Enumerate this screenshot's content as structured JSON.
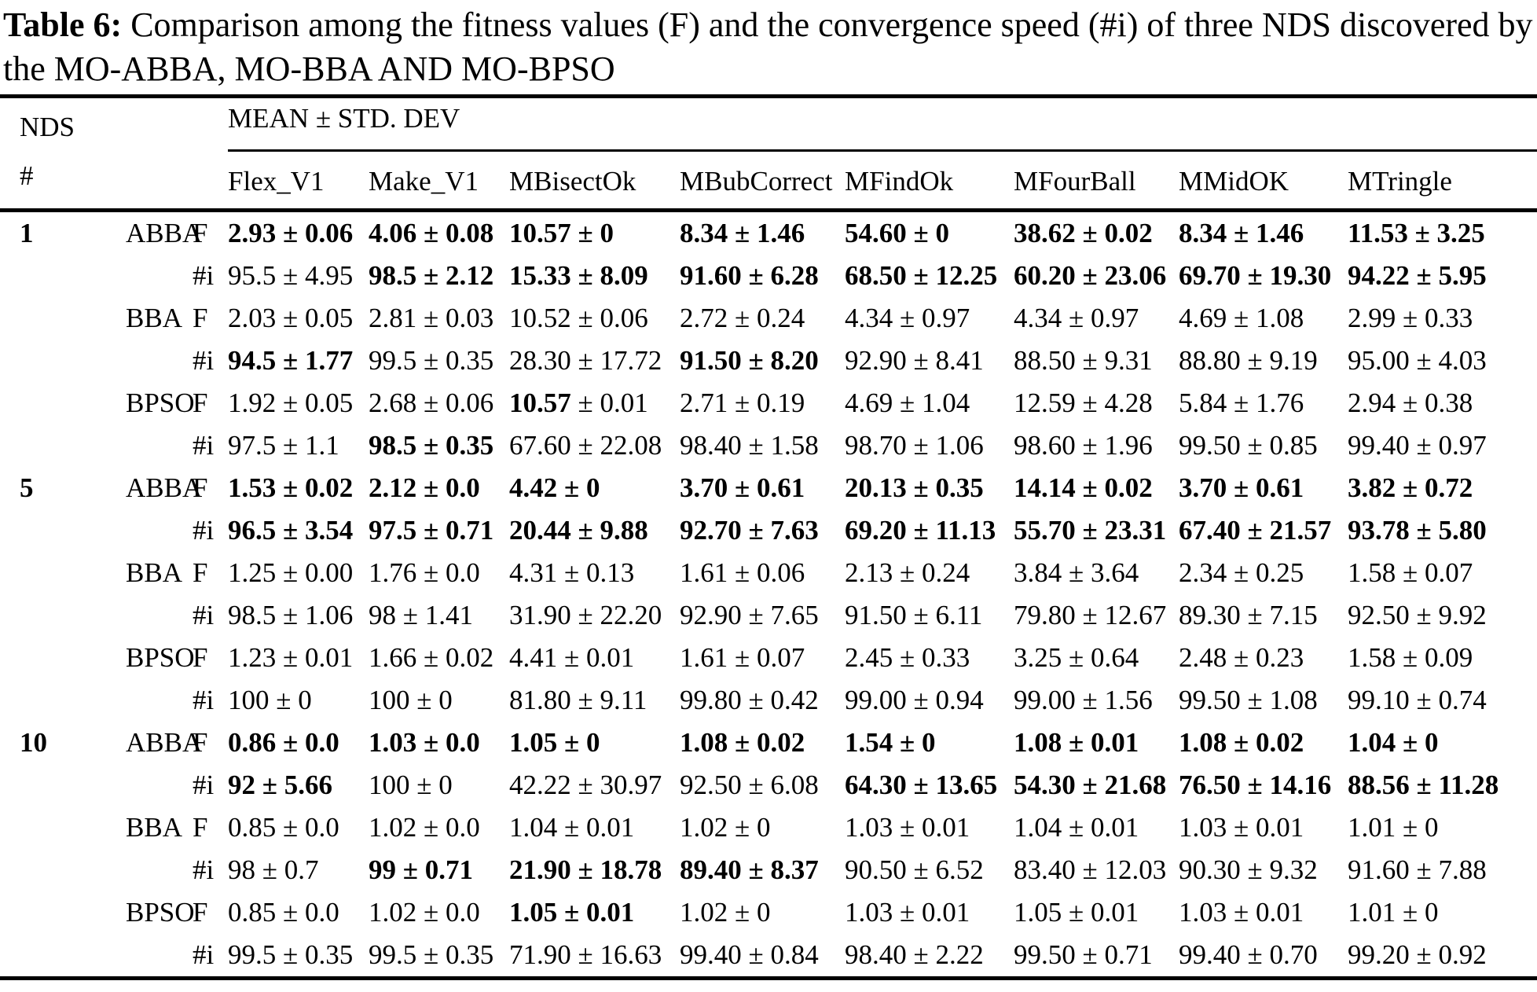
{
  "title": {
    "label": "Table 6:",
    "text": "Comparison among the fitness values (F) and the convergence speed (#i) of three NDS discovered by the MO-ABBA, MO-BBA AND MO-BPSO"
  },
  "table": {
    "stub_header_line1": "NDS",
    "stub_header_line2": "#",
    "group_header": "MEAN ± STD. DEV",
    "columns": [
      "Flex_V1",
      "Make_V1",
      "MBisectOk",
      "MBubCorrect",
      "MFindOk",
      "MFourBall",
      "MMidOK",
      "MTringle"
    ],
    "metric_labels": [
      "F",
      "#i"
    ],
    "groups": [
      {
        "nds": "1",
        "blocks": [
          {
            "algorithm": "ABBA",
            "rows": [
              {
                "metric": "F",
                "cells": [
                  [
                    "2.93 ± 0.06",
                    "all"
                  ],
                  [
                    "4.06 ± 0.08",
                    "all"
                  ],
                  [
                    "10.57 ± 0",
                    "all"
                  ],
                  [
                    "8.34 ± 1.46",
                    "all"
                  ],
                  [
                    "54.60 ± 0",
                    "all"
                  ],
                  [
                    "38.62 ± 0.02",
                    "all"
                  ],
                  [
                    "8.34 ± 1.46",
                    "all"
                  ],
                  [
                    "11.53 ± 3.25",
                    "all"
                  ]
                ]
              },
              {
                "metric": "#i",
                "cells": [
                  [
                    "95.5 ± 4.95",
                    "none"
                  ],
                  [
                    "98.5 ± 2.12",
                    "all"
                  ],
                  [
                    "15.33 ± 8.09",
                    "all"
                  ],
                  [
                    "91.60 ± 6.28",
                    "all"
                  ],
                  [
                    "68.50 ± 12.25",
                    "all"
                  ],
                  [
                    "60.20 ± 23.06",
                    "all"
                  ],
                  [
                    "69.70 ± 19.30",
                    "all"
                  ],
                  [
                    "94.22 ± 5.95",
                    "all"
                  ]
                ]
              }
            ]
          },
          {
            "algorithm": "BBA",
            "rows": [
              {
                "metric": "F",
                "cells": [
                  [
                    "2.03 ± 0.05",
                    "none"
                  ],
                  [
                    "2.81 ± 0.03",
                    "none"
                  ],
                  [
                    "10.52 ± 0.06",
                    "none"
                  ],
                  [
                    "2.72 ± 0.24",
                    "none"
                  ],
                  [
                    "4.34 ± 0.97",
                    "none"
                  ],
                  [
                    "4.34 ± 0.97",
                    "none"
                  ],
                  [
                    "4.69 ± 1.08",
                    "none"
                  ],
                  [
                    "2.99 ± 0.33",
                    "none"
                  ]
                ]
              },
              {
                "metric": "#i",
                "cells": [
                  [
                    "94.5 ± 1.77",
                    "all"
                  ],
                  [
                    "99.5 ± 0.35",
                    "none"
                  ],
                  [
                    "28.30 ± 17.72",
                    "none"
                  ],
                  [
                    "91.50 ± 8.20",
                    "all"
                  ],
                  [
                    "92.90 ± 8.41",
                    "none"
                  ],
                  [
                    "88.50 ± 9.31",
                    "none"
                  ],
                  [
                    "88.80 ± 9.19",
                    "none"
                  ],
                  [
                    "95.00 ± 4.03",
                    "none"
                  ]
                ]
              }
            ]
          },
          {
            "algorithm": "BPSO",
            "rows": [
              {
                "metric": "F",
                "cells": [
                  [
                    "1.92 ± 0.05",
                    "none"
                  ],
                  [
                    "2.68 ± 0.06",
                    "none"
                  ],
                  [
                    "10.57 ± 0.01",
                    "mean"
                  ],
                  [
                    "2.71 ± 0.19",
                    "none"
                  ],
                  [
                    "4.69 ± 1.04",
                    "none"
                  ],
                  [
                    "12.59 ± 4.28",
                    "none"
                  ],
                  [
                    "5.84 ± 1.76",
                    "none"
                  ],
                  [
                    "2.94 ± 0.38",
                    "none"
                  ]
                ]
              },
              {
                "metric": "#i",
                "cells": [
                  [
                    "97.5 ± 1.1",
                    "none"
                  ],
                  [
                    "98.5 ± 0.35",
                    "all"
                  ],
                  [
                    "67.60 ± 22.08",
                    "none"
                  ],
                  [
                    "98.40 ± 1.58",
                    "none"
                  ],
                  [
                    "98.70 ± 1.06",
                    "none"
                  ],
                  [
                    "98.60 ± 1.96",
                    "none"
                  ],
                  [
                    "99.50 ± 0.85",
                    "none"
                  ],
                  [
                    "99.40 ± 0.97",
                    "none"
                  ]
                ]
              }
            ]
          }
        ]
      },
      {
        "nds": "5",
        "blocks": [
          {
            "algorithm": "ABBA",
            "rows": [
              {
                "metric": "F",
                "cells": [
                  [
                    "1.53 ± 0.02",
                    "all"
                  ],
                  [
                    "2.12 ± 0.0",
                    "all"
                  ],
                  [
                    "4.42 ± 0",
                    "all"
                  ],
                  [
                    "3.70 ± 0.61",
                    "all"
                  ],
                  [
                    "20.13 ± 0.35",
                    "all"
                  ],
                  [
                    "14.14 ± 0.02",
                    "all"
                  ],
                  [
                    "3.70 ± 0.61",
                    "all"
                  ],
                  [
                    "3.82 ± 0.72",
                    "all"
                  ]
                ]
              },
              {
                "metric": "#i",
                "cells": [
                  [
                    "96.5 ± 3.54",
                    "all"
                  ],
                  [
                    "97.5 ± 0.71",
                    "all"
                  ],
                  [
                    "20.44 ± 9.88",
                    "all"
                  ],
                  [
                    "92.70 ± 7.63",
                    "all"
                  ],
                  [
                    "69.20 ± 11.13",
                    "all"
                  ],
                  [
                    "55.70 ± 23.31",
                    "all"
                  ],
                  [
                    "67.40 ± 21.57",
                    "all"
                  ],
                  [
                    "93.78 ± 5.80",
                    "all"
                  ]
                ]
              }
            ]
          },
          {
            "algorithm": "BBA",
            "rows": [
              {
                "metric": "F",
                "cells": [
                  [
                    "1.25 ± 0.00",
                    "none"
                  ],
                  [
                    "1.76 ± 0.0",
                    "none"
                  ],
                  [
                    "4.31 ± 0.13",
                    "none"
                  ],
                  [
                    "1.61 ± 0.06",
                    "none"
                  ],
                  [
                    "2.13 ± 0.24",
                    "none"
                  ],
                  [
                    "3.84 ± 3.64",
                    "none"
                  ],
                  [
                    "2.34 ± 0.25",
                    "none"
                  ],
                  [
                    "1.58 ± 0.07",
                    "none"
                  ]
                ]
              },
              {
                "metric": "#i",
                "cells": [
                  [
                    "98.5 ± 1.06",
                    "none"
                  ],
                  [
                    "98 ± 1.41",
                    "none"
                  ],
                  [
                    "31.90 ± 22.20",
                    "none"
                  ],
                  [
                    "92.90 ± 7.65",
                    "none"
                  ],
                  [
                    "91.50 ± 6.11",
                    "none"
                  ],
                  [
                    "79.80 ± 12.67",
                    "none"
                  ],
                  [
                    "89.30 ± 7.15",
                    "none"
                  ],
                  [
                    "92.50 ± 9.92",
                    "none"
                  ]
                ]
              }
            ]
          },
          {
            "algorithm": "BPSO",
            "rows": [
              {
                "metric": "F",
                "cells": [
                  [
                    "1.23 ± 0.01",
                    "none"
                  ],
                  [
                    "1.66 ± 0.02",
                    "none"
                  ],
                  [
                    "4.41 ± 0.01",
                    "none"
                  ],
                  [
                    "1.61 ± 0.07",
                    "none"
                  ],
                  [
                    "2.45 ± 0.33",
                    "none"
                  ],
                  [
                    "3.25 ± 0.64",
                    "none"
                  ],
                  [
                    "2.48 ± 0.23",
                    "none"
                  ],
                  [
                    "1.58 ± 0.09",
                    "none"
                  ]
                ]
              },
              {
                "metric": "#i",
                "cells": [
                  [
                    "100 ± 0",
                    "none"
                  ],
                  [
                    "100 ± 0",
                    "none"
                  ],
                  [
                    "81.80 ± 9.11",
                    "none"
                  ],
                  [
                    "99.80 ± 0.42",
                    "none"
                  ],
                  [
                    "99.00 ± 0.94",
                    "none"
                  ],
                  [
                    "99.00 ± 1.56",
                    "none"
                  ],
                  [
                    "99.50 ± 1.08",
                    "none"
                  ],
                  [
                    "99.10 ± 0.74",
                    "none"
                  ]
                ]
              }
            ]
          }
        ]
      },
      {
        "nds": "10",
        "blocks": [
          {
            "algorithm": "ABBA",
            "rows": [
              {
                "metric": "F",
                "cells": [
                  [
                    "0.86 ± 0.0",
                    "all"
                  ],
                  [
                    "1.03 ± 0.0",
                    "all"
                  ],
                  [
                    "1.05 ± 0",
                    "all"
                  ],
                  [
                    "1.08 ± 0.02",
                    "all"
                  ],
                  [
                    "1.54 ± 0",
                    "all"
                  ],
                  [
                    "1.08 ± 0.01",
                    "all"
                  ],
                  [
                    "1.08 ± 0.02",
                    "all"
                  ],
                  [
                    "1.04 ± 0",
                    "all"
                  ]
                ]
              },
              {
                "metric": "#i",
                "cells": [
                  [
                    "92 ± 5.66",
                    "all"
                  ],
                  [
                    "100 ± 0",
                    "none"
                  ],
                  [
                    "42.22 ± 30.97",
                    "none"
                  ],
                  [
                    "92.50 ± 6.08",
                    "none"
                  ],
                  [
                    "64.30 ± 13.65",
                    "all"
                  ],
                  [
                    "54.30 ± 21.68",
                    "all"
                  ],
                  [
                    "76.50 ± 14.16",
                    "all"
                  ],
                  [
                    "88.56 ± 11.28",
                    "all"
                  ]
                ]
              }
            ]
          },
          {
            "algorithm": "BBA",
            "rows": [
              {
                "metric": "F",
                "cells": [
                  [
                    "0.85 ± 0.0",
                    "none"
                  ],
                  [
                    "1.02 ± 0.0",
                    "none"
                  ],
                  [
                    "1.04 ± 0.01",
                    "none"
                  ],
                  [
                    "1.02 ± 0",
                    "none"
                  ],
                  [
                    "1.03 ± 0.01",
                    "none"
                  ],
                  [
                    "1.04 ± 0.01",
                    "none"
                  ],
                  [
                    "1.03 ± 0.01",
                    "none"
                  ],
                  [
                    "1.01 ± 0",
                    "none"
                  ]
                ]
              },
              {
                "metric": "#i",
                "cells": [
                  [
                    "98 ± 0.7",
                    "none"
                  ],
                  [
                    "99 ± 0.71",
                    "all"
                  ],
                  [
                    "21.90 ± 18.78",
                    "all"
                  ],
                  [
                    "89.40 ± 8.37",
                    "all"
                  ],
                  [
                    "90.50 ± 6.52",
                    "none"
                  ],
                  [
                    "83.40 ± 12.03",
                    "none"
                  ],
                  [
                    "90.30 ± 9.32",
                    "none"
                  ],
                  [
                    "91.60 ± 7.88",
                    "none"
                  ]
                ]
              }
            ]
          },
          {
            "algorithm": "BPSO",
            "rows": [
              {
                "metric": "F",
                "cells": [
                  [
                    "0.85 ± 0.0",
                    "none"
                  ],
                  [
                    "1.02 ± 0.0",
                    "none"
                  ],
                  [
                    "1.05 ± 0.01",
                    "all"
                  ],
                  [
                    "1.02 ± 0",
                    "none"
                  ],
                  [
                    "1.03 ± 0.01",
                    "none"
                  ],
                  [
                    "1.05 ± 0.01",
                    "none"
                  ],
                  [
                    "1.03 ± 0.01",
                    "none"
                  ],
                  [
                    "1.01 ± 0",
                    "none"
                  ]
                ]
              },
              {
                "metric": "#i",
                "cells": [
                  [
                    "99.5 ± 0.35",
                    "none"
                  ],
                  [
                    "99.5 ± 0.35",
                    "none"
                  ],
                  [
                    "71.90 ± 16.63",
                    "none"
                  ],
                  [
                    "99.40 ± 0.84",
                    "none"
                  ],
                  [
                    "98.40 ± 2.22",
                    "none"
                  ],
                  [
                    "99.50 ± 0.71",
                    "none"
                  ],
                  [
                    "99.40 ± 0.70",
                    "none"
                  ],
                  [
                    "99.20 ± 0.92",
                    "none"
                  ]
                ]
              }
            ]
          }
        ]
      }
    ]
  }
}
